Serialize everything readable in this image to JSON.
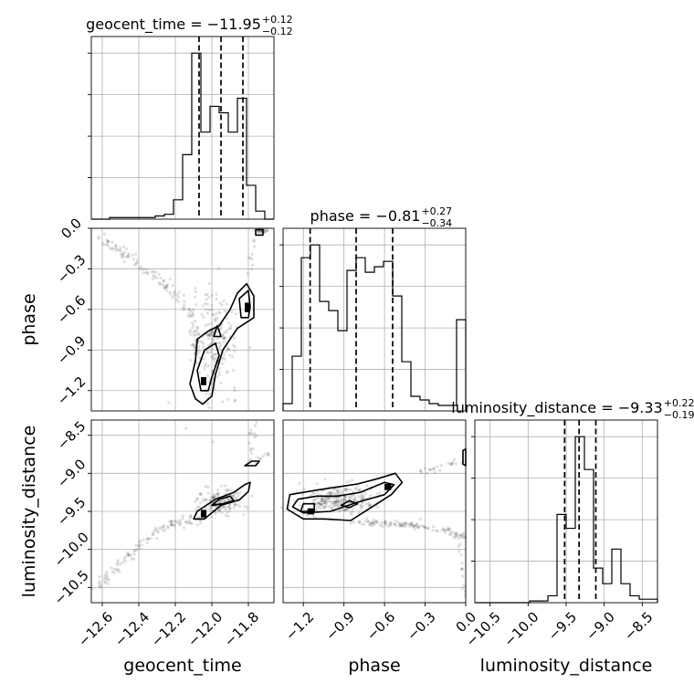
{
  "chart_data": {
    "type": "corner",
    "parameters": [
      "geocent_time",
      "phase",
      "luminosity_distance"
    ],
    "titles": [
      {
        "param": "geocent_time",
        "text": "geocent_time = −11.95",
        "upper": "+0.12",
        "lower": "−0.12"
      },
      {
        "param": "phase",
        "text": "phase = −0.81",
        "upper": "+0.27",
        "lower": "−0.34"
      },
      {
        "param": "luminosity_distance",
        "text": "luminosity_distance = −9.33",
        "upper": "+0.22",
        "lower": "−0.19"
      }
    ],
    "axis_labels": {
      "geocent_time": "geocent_time",
      "phase": "phase",
      "luminosity_distance": "luminosity_distance"
    },
    "ranges": {
      "geocent_time": [
        -12.66,
        -11.66
      ],
      "phase": [
        -1.35,
        0.0
      ],
      "luminosity_distance": [
        -10.7,
        -8.3
      ]
    },
    "ticks": {
      "geocent_time": {
        "values": [
          -12.6,
          -12.4,
          -12.2,
          -12.0,
          -11.8
        ],
        "labels": [
          "−12.6",
          "−12.4",
          "−12.2",
          "−12.0",
          "−11.8"
        ]
      },
      "phase": {
        "values": [
          -1.2,
          -0.9,
          -0.6,
          -0.3,
          0.0
        ],
        "labels": [
          "−1.2",
          "−0.9",
          "−0.6",
          "−0.3",
          "0.0"
        ]
      },
      "luminosity_distance": {
        "values": [
          -10.5,
          -10.0,
          -9.5,
          -9.0,
          -8.5
        ],
        "labels": [
          "−10.5",
          "−10.0",
          "−9.5",
          "−9.0",
          "−8.5"
        ]
      }
    },
    "grid": true,
    "quantiles": {
      "geocent_time": [
        -12.07,
        -11.95,
        -11.83
      ],
      "phase": [
        -1.15,
        -0.81,
        -0.54
      ],
      "luminosity_distance": [
        -9.52,
        -9.33,
        -9.11
      ]
    },
    "histograms": {
      "geocent_time": {
        "edges": [
          -12.66,
          -12.61,
          -12.56,
          -12.51,
          -12.46,
          -12.41,
          -12.36,
          -12.31,
          -12.26,
          -12.21,
          -12.16,
          -12.11,
          -12.06,
          -12.01,
          -11.96,
          -11.91,
          -11.86,
          -11.81,
          -11.76,
          -11.71,
          -11.66
        ],
        "counts": [
          0,
          0,
          1,
          1,
          1,
          1,
          1,
          2,
          3,
          12,
          40,
          103,
          54,
          70,
          66,
          54,
          75,
          21,
          5,
          0
        ]
      },
      "phase": {
        "edges": [
          -1.35,
          -1.2825,
          -1.215,
          -1.1475,
          -1.08,
          -1.0125,
          -0.945,
          -0.8775,
          -0.81,
          -0.7425,
          -0.675,
          -0.6075,
          -0.54,
          -0.4725,
          -0.405,
          -0.3375,
          -0.27,
          -0.2025,
          -0.135,
          -0.0675,
          0.0
        ],
        "counts": [
          4,
          30,
          84,
          91,
          60,
          55,
          44,
          77,
          84,
          76,
          79,
          82,
          63,
          27,
          8,
          6,
          4,
          3,
          3,
          50
        ]
      },
      "luminosity_distance": {
        "edges": [
          -10.7,
          -10.58,
          -10.46,
          -10.34,
          -10.22,
          -10.1,
          -9.98,
          -9.86,
          -9.74,
          -9.62,
          -9.5,
          -9.38,
          -9.26,
          -9.14,
          -9.02,
          -8.9,
          -8.78,
          -8.66,
          -8.54,
          -8.42,
          -8.3
        ],
        "counts": [
          0,
          0,
          0,
          0,
          0,
          0,
          1,
          1,
          4,
          51,
          43,
          96,
          77,
          20,
          11,
          31,
          11,
          4,
          2,
          2
        ]
      }
    },
    "panels_2d": [
      {
        "x": "geocent_time",
        "y": "phase"
      },
      {
        "x": "geocent_time",
        "y": "luminosity_distance"
      },
      {
        "x": "phase",
        "y": "luminosity_distance"
      }
    ]
  }
}
